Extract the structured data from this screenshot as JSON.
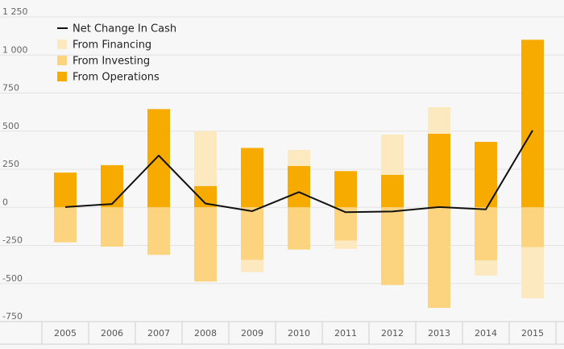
{
  "colors": {
    "operations": "#f7ab00",
    "investing": "#fcd47f",
    "financing": "#fde9bf",
    "net_line": "#111111",
    "gridline": "#e3e3e3",
    "axis": "#cfcfcf"
  },
  "chart_data": {
    "type": "bar",
    "stacked": true,
    "title": "",
    "xlabel": "",
    "ylabel": "",
    "ylim": [
      -750,
      1250
    ],
    "yticks": [
      1250,
      1000,
      750,
      500,
      250,
      0,
      -250,
      -500,
      -750
    ],
    "ytick_labels": [
      "1 250",
      "1 000",
      "750",
      "500",
      "250",
      "0",
      "-250",
      "-500",
      "-750"
    ],
    "grid": true,
    "legend_position": "top-left",
    "categories": [
      "2005",
      "2006",
      "2007",
      "2008",
      "2009",
      "2010",
      "2011",
      "2012",
      "2013",
      "2014",
      "2015"
    ],
    "series": [
      {
        "name": "From Financing",
        "type": "bar",
        "values": [
          0,
          0,
          0,
          360,
          -80,
          105,
          -55,
          265,
          175,
          -100,
          -335
        ]
      },
      {
        "name": "From Investing",
        "type": "bar",
        "values": [
          -230,
          -258,
          -312,
          -487,
          -345,
          -277,
          -218,
          -510,
          -660,
          -348,
          -262
        ]
      },
      {
        "name": "From Operations",
        "type": "bar",
        "values": [
          228,
          277,
          645,
          140,
          390,
          272,
          238,
          213,
          483,
          430,
          1100
        ]
      },
      {
        "name": "Net Change In Cash",
        "type": "line",
        "values": [
          2,
          22,
          340,
          25,
          -25,
          100,
          -32,
          -27,
          2,
          -13,
          505
        ]
      }
    ]
  }
}
